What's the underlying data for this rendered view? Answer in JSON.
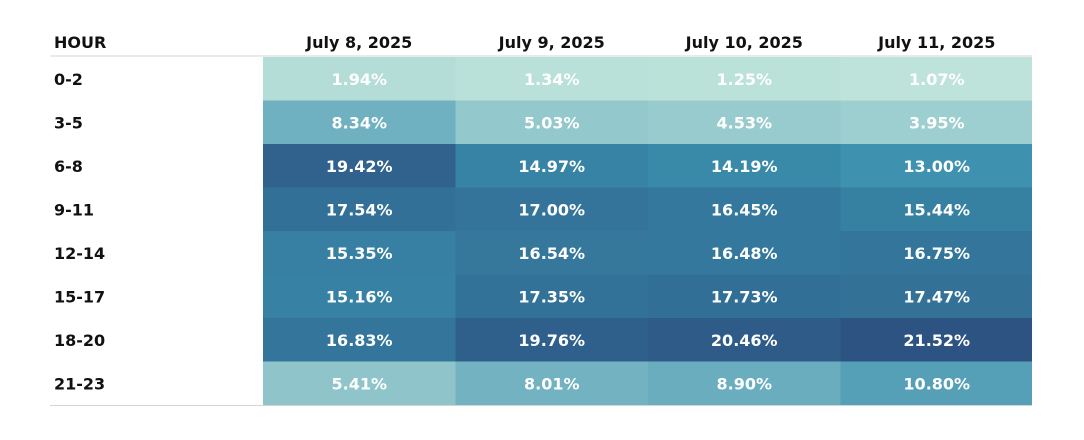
{
  "chart_data": {
    "type": "heatmap",
    "row_header": "HOUR",
    "columns": [
      "July 8, 2025",
      "July 9, 2025",
      "July 10, 2025",
      "July 11, 2025"
    ],
    "rows": [
      "0-2",
      "3-5",
      "6-8",
      "9-11",
      "12-14",
      "15-17",
      "18-20",
      "21-23"
    ],
    "values": [
      [
        1.94,
        1.34,
        1.25,
        1.07
      ],
      [
        8.34,
        5.03,
        4.53,
        3.95
      ],
      [
        19.42,
        14.97,
        14.19,
        13.0
      ],
      [
        17.54,
        17.0,
        16.45,
        15.44
      ],
      [
        15.35,
        16.54,
        16.48,
        16.75
      ],
      [
        15.16,
        17.35,
        17.73,
        17.47
      ],
      [
        16.83,
        19.76,
        20.46,
        21.52
      ],
      [
        5.41,
        8.01,
        8.9,
        10.8
      ]
    ],
    "labels": [
      [
        "1.94%",
        "1.34%",
        "1.25%",
        "1.07%"
      ],
      [
        "8.34%",
        "5.03%",
        "4.53%",
        "3.95%"
      ],
      [
        "19.42%",
        "14.97%",
        "14.19%",
        "13.00%"
      ],
      [
        "17.54%",
        "17.00%",
        "16.45%",
        "15.44%"
      ],
      [
        "15.35%",
        "16.54%",
        "16.48%",
        "16.75%"
      ],
      [
        "15.16%",
        "17.35%",
        "17.73%",
        "17.47%"
      ],
      [
        "16.83%",
        "19.76%",
        "20.46%",
        "21.52%"
      ],
      [
        "5.41%",
        "8.01%",
        "8.90%",
        "10.80%"
      ]
    ],
    "value_unit": "%",
    "color_scale": {
      "low": "#bde3da",
      "mid": "#3a8fae",
      "high": "#2c5381"
    },
    "grid": false,
    "legend": "none"
  }
}
